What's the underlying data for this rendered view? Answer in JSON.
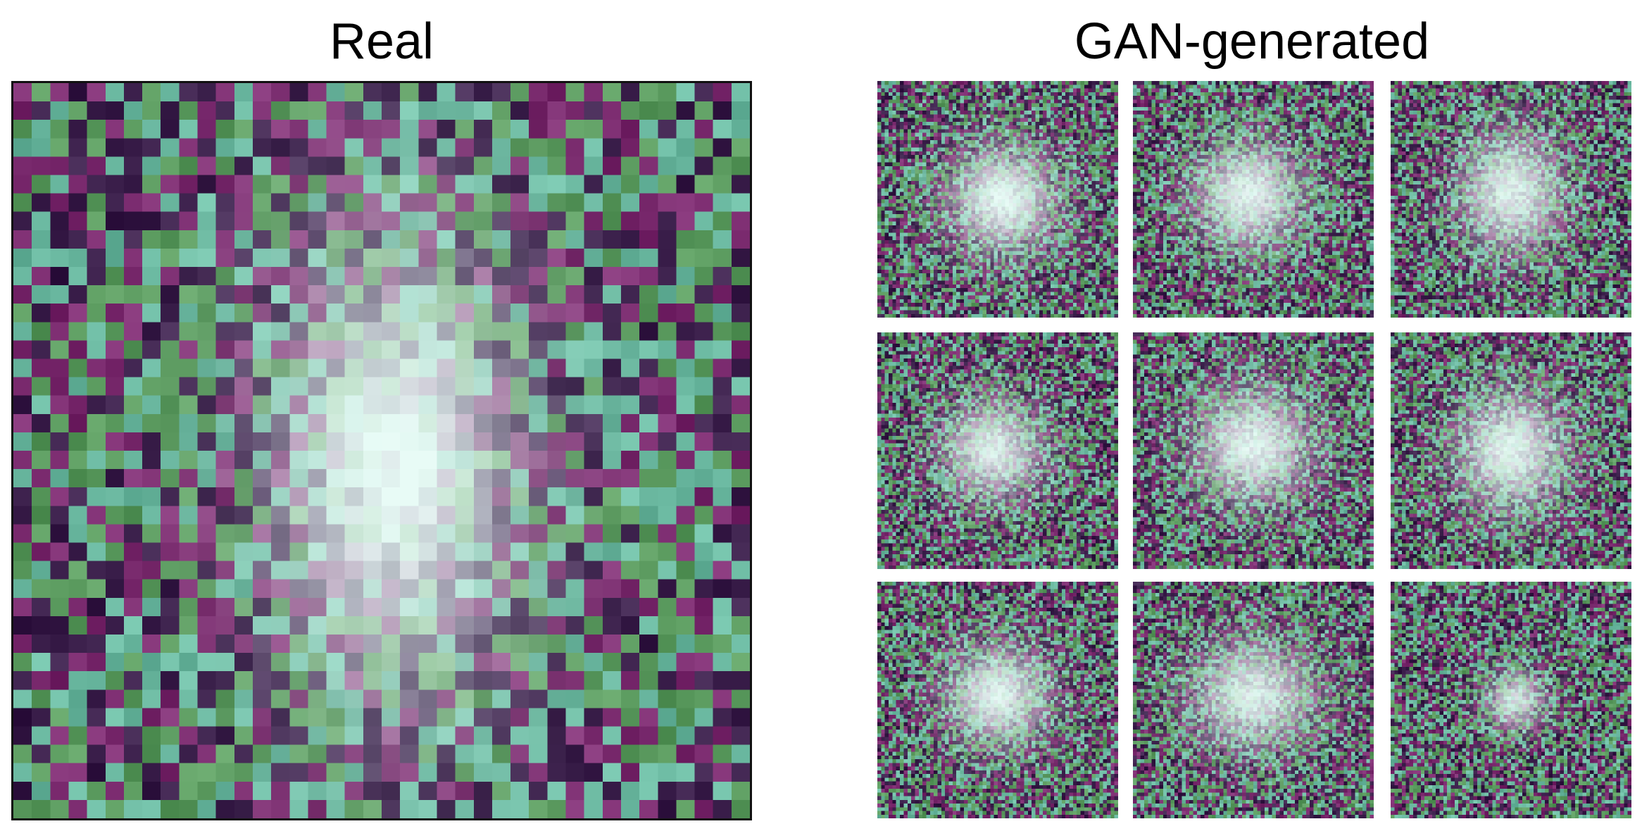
{
  "panels": {
    "real": {
      "title": "Real"
    },
    "gan": {
      "title": "GAN-generated"
    }
  },
  "palette": {
    "noise_purple": "#7a2a6e",
    "noise_dark": "#3a1e4a",
    "noise_green": "#5a9a5e",
    "noise_teal": "#6ab8a0",
    "galaxy_core": "#e8fbf6"
  }
}
